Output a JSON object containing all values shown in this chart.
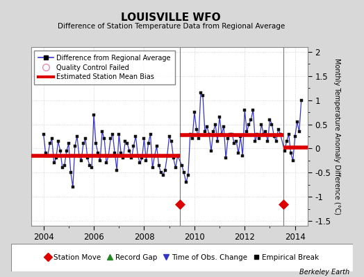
{
  "title": "LOUISVILLE WFO",
  "subtitle": "Difference of Station Temperature Data from Regional Average",
  "ylabel": "Monthly Temperature Anomaly Difference (°C)",
  "credit": "Berkeley Earth",
  "xlim": [
    2003.5,
    2014.5
  ],
  "ylim": [
    -1.6,
    2.1
  ],
  "ytick_vals": [
    -1.5,
    -1.0,
    -0.5,
    0.0,
    0.5,
    1.0,
    1.5,
    2.0
  ],
  "ytick_labels": [
    "-1.5",
    "-1",
    "-0.5",
    "0",
    "0.5",
    "1",
    "1.5",
    "2"
  ],
  "xticks": [
    2004,
    2006,
    2008,
    2010,
    2012,
    2014
  ],
  "bg_color": "#d8d8d8",
  "plot_bg_color": "#ffffff",
  "line_color": "#3333cc",
  "marker_color": "#111111",
  "bias_color": "#dd0000",
  "segment1_start": 2003.5,
  "segment1_end": 2009.42,
  "segment1_bias": -0.15,
  "segment2_start": 2009.42,
  "segment2_end": 2013.55,
  "segment2_bias": 0.28,
  "segment3_start": 2013.55,
  "segment3_end": 2014.5,
  "segment3_bias": 0.02,
  "station_moves": [
    2009.42,
    2013.55
  ],
  "station_move_y": -1.15,
  "data_x": [
    2004.0,
    2004.083,
    2004.167,
    2004.25,
    2004.333,
    2004.417,
    2004.5,
    2004.583,
    2004.667,
    2004.75,
    2004.833,
    2004.917,
    2005.0,
    2005.083,
    2005.167,
    2005.25,
    2005.333,
    2005.417,
    2005.5,
    2005.583,
    2005.667,
    2005.75,
    2005.833,
    2005.917,
    2006.0,
    2006.083,
    2006.167,
    2006.25,
    2006.333,
    2006.417,
    2006.5,
    2006.583,
    2006.667,
    2006.75,
    2006.833,
    2006.917,
    2007.0,
    2007.083,
    2007.167,
    2007.25,
    2007.333,
    2007.417,
    2007.5,
    2007.583,
    2007.667,
    2007.75,
    2007.833,
    2007.917,
    2008.0,
    2008.083,
    2008.167,
    2008.25,
    2008.333,
    2008.417,
    2008.5,
    2008.583,
    2008.667,
    2008.75,
    2008.833,
    2008.917,
    2009.0,
    2009.083,
    2009.167,
    2009.25,
    2009.333,
    2009.5,
    2009.583,
    2009.667,
    2009.75,
    2009.833,
    2009.917,
    2010.0,
    2010.083,
    2010.167,
    2010.25,
    2010.333,
    2010.417,
    2010.5,
    2010.583,
    2010.667,
    2010.75,
    2010.833,
    2010.917,
    2011.0,
    2011.083,
    2011.167,
    2011.25,
    2011.333,
    2011.417,
    2011.5,
    2011.583,
    2011.667,
    2011.75,
    2011.833,
    2011.917,
    2012.0,
    2012.083,
    2012.167,
    2012.25,
    2012.333,
    2012.417,
    2012.5,
    2012.583,
    2012.667,
    2012.75,
    2012.833,
    2012.917,
    2013.0,
    2013.083,
    2013.167,
    2013.25,
    2013.333,
    2013.417,
    2013.583,
    2013.667,
    2013.75,
    2013.833,
    2013.917,
    2014.0,
    2014.083,
    2014.167,
    2014.25
  ],
  "data_y": [
    0.3,
    -0.1,
    -0.15,
    0.1,
    0.2,
    -0.3,
    -0.2,
    0.15,
    -0.05,
    -0.4,
    -0.35,
    -0.05,
    0.1,
    -0.5,
    -0.8,
    0.05,
    0.25,
    -0.15,
    -0.25,
    0.1,
    0.2,
    -0.2,
    -0.35,
    -0.4,
    0.7,
    0.1,
    -0.1,
    -0.25,
    0.35,
    0.2,
    -0.3,
    -0.15,
    0.2,
    0.3,
    -0.1,
    -0.45,
    0.3,
    -0.1,
    -0.2,
    0.15,
    0.1,
    -0.05,
    -0.2,
    0.05,
    0.25,
    -0.15,
    -0.3,
    -0.2,
    0.2,
    -0.25,
    0.1,
    0.3,
    -0.4,
    -0.15,
    0.05,
    -0.35,
    -0.5,
    -0.55,
    -0.45,
    -0.15,
    0.25,
    0.15,
    -0.2,
    -0.4,
    -0.15,
    -0.35,
    -0.5,
    -0.7,
    -0.55,
    0.3,
    0.2,
    0.75,
    0.4,
    0.2,
    1.15,
    1.1,
    0.35,
    0.45,
    0.3,
    -0.05,
    0.35,
    0.5,
    0.15,
    0.65,
    0.3,
    0.45,
    -0.2,
    0.2,
    0.3,
    0.3,
    0.1,
    0.15,
    -0.1,
    0.25,
    -0.15,
    0.8,
    0.35,
    0.5,
    0.6,
    0.8,
    0.15,
    0.3,
    0.2,
    0.5,
    0.3,
    0.35,
    0.15,
    0.6,
    0.5,
    0.25,
    0.15,
    0.4,
    0.3,
    -0.05,
    0.15,
    0.3,
    -0.1,
    -0.25,
    0.25,
    0.55,
    0.35,
    1.0
  ]
}
